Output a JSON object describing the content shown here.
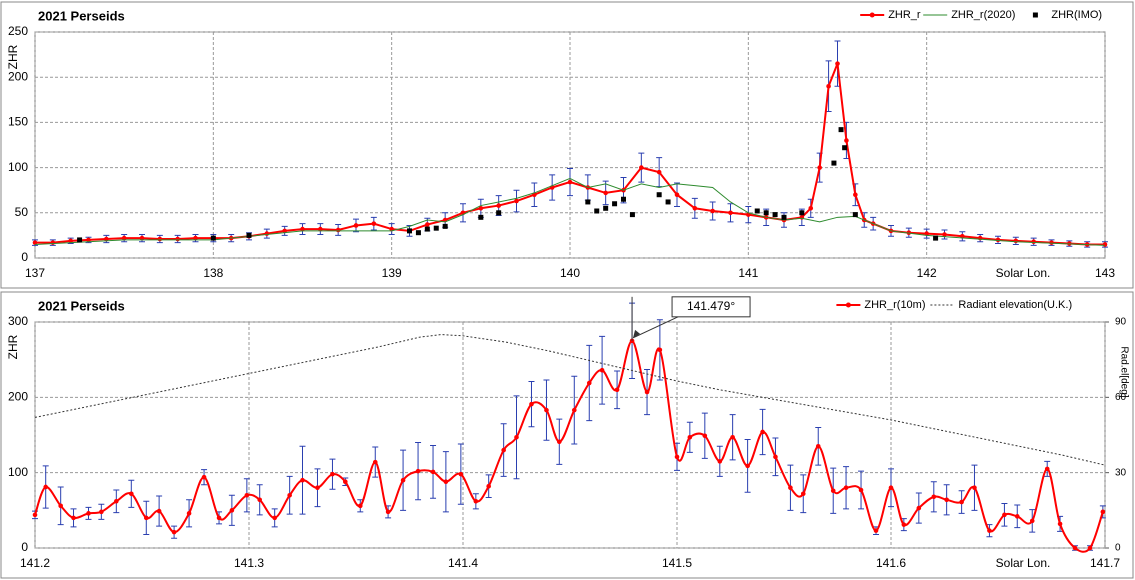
{
  "chart_data": [
    {
      "type": "line",
      "title": "2021 Perseids",
      "ylabel": "ZHR",
      "xlabel": "Solar Lon.",
      "xlim": [
        137,
        143
      ],
      "xticks": [
        137,
        138,
        139,
        140,
        141,
        142,
        143
      ],
      "ylim": [
        0,
        250
      ],
      "yticks": [
        0,
        50,
        100,
        150,
        200,
        250
      ],
      "grid": true,
      "legend": "upper right",
      "error_color": "#2a3fb0",
      "series": [
        {
          "name": "ZHR_r",
          "color": "#ff0000",
          "marker": "circle",
          "line": true,
          "x": [
            137,
            137.1,
            137.2,
            137.3,
            137.4,
            137.5,
            137.6,
            137.7,
            137.8,
            137.9,
            138,
            138.1,
            138.2,
            138.3,
            138.4,
            138.5,
            138.6,
            138.7,
            138.8,
            138.9,
            139,
            139.1,
            139.2,
            139.3,
            139.4,
            139.5,
            139.6,
            139.7,
            139.8,
            139.9,
            140,
            140.1,
            140.2,
            140.3,
            140.4,
            140.5,
            140.6,
            140.7,
            140.8,
            140.9,
            141,
            141.1,
            141.2,
            141.3,
            141.35,
            141.4,
            141.45,
            141.5,
            141.55,
            141.6,
            141.65,
            141.7,
            141.8,
            141.9,
            142,
            142.1,
            142.2,
            142.3,
            142.4,
            142.5,
            142.6,
            142.7,
            142.8,
            142.9,
            143
          ],
          "values": [
            17,
            17,
            19,
            20,
            21,
            22,
            22,
            21,
            21,
            22,
            22,
            22,
            24,
            27,
            30,
            32,
            32,
            31,
            36,
            38,
            32,
            30,
            37,
            42,
            50,
            55,
            58,
            63,
            70,
            78,
            84,
            78,
            72,
            75,
            100,
            95,
            70,
            55,
            52,
            50,
            48,
            45,
            42,
            45,
            55,
            100,
            190,
            215,
            130,
            70,
            42,
            38,
            30,
            28,
            27,
            26,
            24,
            22,
            20,
            19,
            18,
            17,
            16,
            15,
            15
          ],
          "errors": [
            3,
            3,
            3,
            3,
            4,
            4,
            4,
            4,
            4,
            4,
            4,
            4,
            4,
            5,
            5,
            6,
            6,
            6,
            7,
            7,
            6,
            6,
            7,
            8,
            10,
            10,
            11,
            12,
            13,
            14,
            15,
            14,
            13,
            14,
            16,
            16,
            13,
            11,
            10,
            10,
            9,
            9,
            8,
            9,
            10,
            16,
            28,
            25,
            20,
            12,
            8,
            7,
            6,
            5,
            5,
            5,
            5,
            4,
            4,
            4,
            4,
            3,
            3,
            3,
            3
          ]
        },
        {
          "name": "ZHR_r(2020)",
          "color": "#2e8b2e",
          "marker": "none",
          "line": true,
          "x": [
            137,
            137.5,
            138,
            138.5,
            139,
            139.1,
            139.2,
            139.3,
            139.4,
            139.5,
            139.6,
            139.7,
            139.8,
            139.9,
            140,
            140.1,
            140.2,
            140.3,
            140.4,
            140.5,
            140.6,
            140.7,
            140.8,
            140.9,
            141,
            141.1,
            141.2,
            141.3,
            141.4,
            141.5,
            141.6,
            141.7,
            141.8,
            142,
            142.5,
            143
          ],
          "values": [
            15,
            20,
            20,
            30,
            30,
            35,
            42,
            40,
            48,
            58,
            62,
            66,
            72,
            80,
            88,
            78,
            82,
            75,
            82,
            78,
            82,
            80,
            78,
            62,
            50,
            45,
            42,
            44,
            40,
            45,
            46,
            38,
            30,
            25,
            18,
            14
          ]
        },
        {
          "name": "ZHR(IMO)",
          "color": "#000000",
          "marker": "square",
          "line": false,
          "x": [
            137.25,
            138,
            138.2,
            139.1,
            139.15,
            139.2,
            139.25,
            139.3,
            139.5,
            139.6,
            140.1,
            140.15,
            140.2,
            140.25,
            140.3,
            140.35,
            140.5,
            140.55,
            141.05,
            141.1,
            141.15,
            141.2,
            141.3,
            141.48,
            141.52,
            141.54,
            141.6,
            142.05
          ],
          "values": [
            20,
            22,
            25,
            30,
            28,
            32,
            33,
            35,
            45,
            50,
            62,
            52,
            55,
            60,
            65,
            48,
            70,
            62,
            52,
            50,
            48,
            45,
            50,
            105,
            142,
            122,
            48,
            22
          ]
        }
      ]
    },
    {
      "type": "line",
      "title": "2021 Perseids",
      "ylabel": "ZHR",
      "y2label": "Rad.el[deg]",
      "xlabel": "Solar Lon.",
      "xlim": [
        141.2,
        141.7
      ],
      "xticks": [
        141.2,
        141.3,
        141.4,
        141.5,
        141.6,
        141.7
      ],
      "ylim": [
        0,
        300
      ],
      "yticks": [
        0,
        100,
        200,
        300
      ],
      "y2lim": [
        0,
        90
      ],
      "y2ticks": [
        0,
        30,
        60,
        90
      ],
      "grid": true,
      "legend": "upper right",
      "error_color": "#2a3fb0",
      "annotation": {
        "text": "141.479°",
        "x": 141.479,
        "y": 275
      },
      "series": [
        {
          "name": "ZHR_r(10m)",
          "color": "#ff0000",
          "marker": "circle",
          "line": true,
          "smooth": true,
          "x": [
            141.2,
            141.205,
            141.212,
            141.218,
            141.225,
            141.231,
            141.238,
            141.245,
            141.252,
            141.258,
            141.265,
            141.272,
            141.279,
            141.286,
            141.292,
            141.299,
            141.305,
            141.312,
            141.319,
            141.325,
            141.332,
            141.339,
            141.345,
            141.352,
            141.359,
            141.365,
            141.372,
            141.379,
            141.386,
            141.392,
            141.399,
            141.406,
            141.412,
            141.419,
            141.425,
            141.432,
            141.439,
            141.445,
            141.452,
            141.459,
            141.465,
            141.472,
            141.479,
            141.486,
            141.492,
            141.5,
            141.506,
            141.513,
            141.52,
            141.526,
            141.533,
            141.54,
            141.546,
            141.553,
            141.559,
            141.566,
            141.573,
            141.579,
            141.586,
            141.593,
            141.6,
            141.606,
            141.613,
            141.62,
            141.626,
            141.633,
            141.639,
            141.646,
            141.653,
            141.659,
            141.666,
            141.673,
            141.679,
            141.686,
            141.693,
            141.699
          ],
          "values": [
            44,
            81,
            56,
            40,
            46,
            48,
            62,
            72,
            40,
            49,
            21,
            46,
            94,
            40,
            50,
            70,
            64,
            40,
            70,
            90,
            80,
            98,
            88,
            56,
            114,
            48,
            90,
            102,
            101,
            88,
            98,
            62,
            82,
            130,
            147,
            191,
            183,
            141,
            183,
            219,
            236,
            210,
            275,
            207,
            263,
            121,
            147,
            149,
            115,
            147,
            109,
            154,
            121,
            80,
            72,
            135,
            76,
            80,
            77,
            23,
            80,
            31,
            53,
            68,
            64,
            61,
            80,
            23,
            44,
            42,
            36,
            105,
            32,
            0,
            0,
            48
          ],
          "errors": [
            5,
            28,
            25,
            12,
            8,
            10,
            15,
            18,
            22,
            20,
            8,
            18,
            10,
            8,
            20,
            22,
            20,
            12,
            25,
            45,
            25,
            20,
            5,
            8,
            20,
            8,
            40,
            38,
            35,
            40,
            40,
            10,
            15,
            35,
            55,
            30,
            40,
            30,
            45,
            50,
            45,
            25,
            50,
            30,
            40,
            18,
            20,
            30,
            20,
            30,
            35,
            30,
            25,
            30,
            25,
            25,
            30,
            28,
            25,
            5,
            25,
            8,
            20,
            20,
            20,
            15,
            30,
            8,
            15,
            15,
            15,
            10,
            10,
            3,
            3,
            8
          ]
        },
        {
          "name": "Radiant elevation(U.K.)",
          "color": "#333333",
          "marker": "none",
          "line": true,
          "dash": true,
          "axis": "y2",
          "x": [
            141.2,
            141.22,
            141.24,
            141.26,
            141.28,
            141.3,
            141.32,
            141.34,
            141.36,
            141.38,
            141.39,
            141.4,
            141.42,
            141.44,
            141.46,
            141.48,
            141.5,
            141.52,
            141.54,
            141.56,
            141.58,
            141.6,
            141.62,
            141.64,
            141.66,
            141.68,
            141.7
          ],
          "values": [
            52,
            55.5,
            59,
            62.5,
            66,
            69.5,
            73,
            76.5,
            80,
            84,
            85,
            84.5,
            82,
            78.5,
            74.5,
            70.5,
            66.5,
            63,
            60,
            57,
            54,
            51,
            47.5,
            44,
            40.5,
            37,
            33
          ]
        }
      ]
    }
  ]
}
